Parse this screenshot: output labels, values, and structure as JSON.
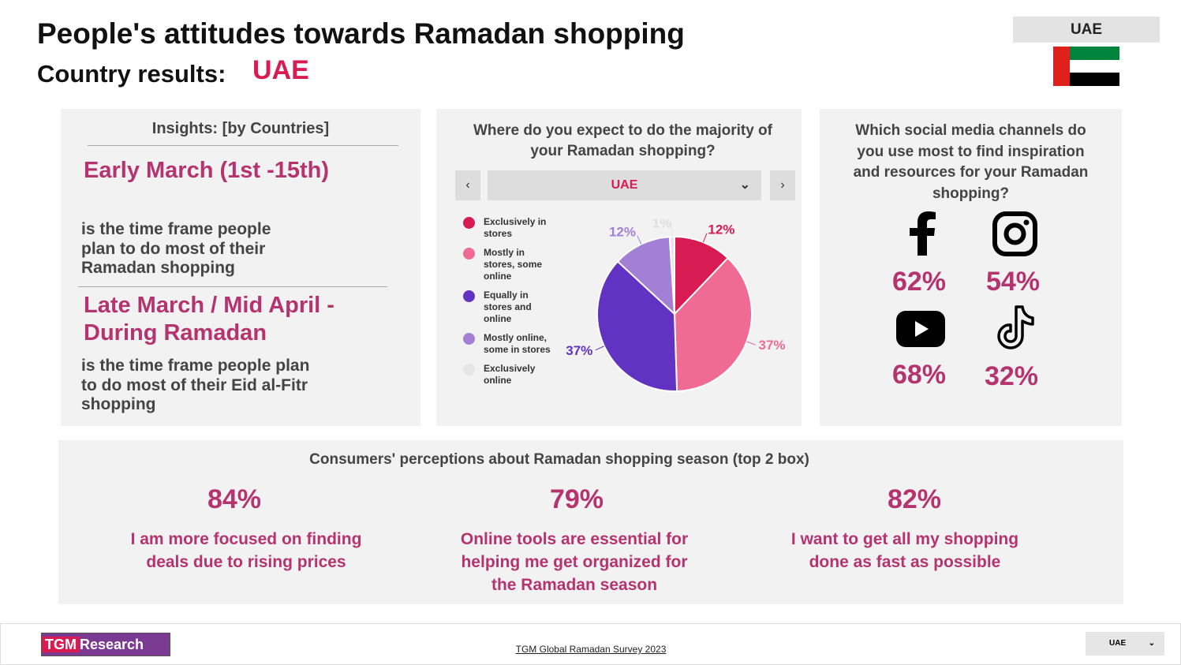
{
  "header": {
    "title": "People's attitudes towards Ramadan shopping",
    "subtitle": "Country results:",
    "country": "UAE",
    "country_badge": "UAE"
  },
  "insights": {
    "title": "Insights: [by Countries]",
    "items": [
      {
        "period": "Early March (1st -15th)",
        "text": "is the time frame people plan to do most of their Ramadan shopping"
      },
      {
        "period": "Late March / Mid April - During Ramadan",
        "text": "is the time frame people plan to do most of their Eid al-Fitr shopping"
      }
    ]
  },
  "shopping": {
    "question": "Where do you expect to do the majority of your Ramadan shopping?",
    "dropdown": "UAE",
    "chart": {
      "type": "pie",
      "categories": [
        "Exclusively in stores",
        "Mostly in stores, some online",
        "Equally in stores and online",
        "Mostly online, some in stores",
        "Exclusively online"
      ],
      "values": [
        12,
        37,
        37,
        12,
        1
      ],
      "value_labels": [
        "12%",
        "37%",
        "37%",
        "12%",
        "1%"
      ],
      "colors": [
        "#d81b53",
        "#f06b93",
        "#6233c2",
        "#a47fd6",
        "#e6e6e6"
      ]
    }
  },
  "social": {
    "question": "Which social media channels do you use most to find inspiration and resources for your Ramadan shopping?",
    "values": [
      "62%",
      "54%",
      "68%",
      "32%"
    ]
  },
  "perceptions": {
    "title": "Consumers' perceptions about Ramadan shopping season (top 2 box)",
    "items": [
      {
        "value": "84%",
        "text": "I am more focused on finding deals due to rising prices"
      },
      {
        "value": "79%",
        "text": "Online tools are essential for helping me get organized for the Ramadan season"
      },
      {
        "value": "82%",
        "text": "I want to get all my shopping done as fast as possible"
      }
    ]
  },
  "footer": {
    "logo_tgm": "TGM",
    "logo_research": "Research",
    "source": "TGM Global Ramadan Survey 2023",
    "dropdown": "UAE"
  }
}
